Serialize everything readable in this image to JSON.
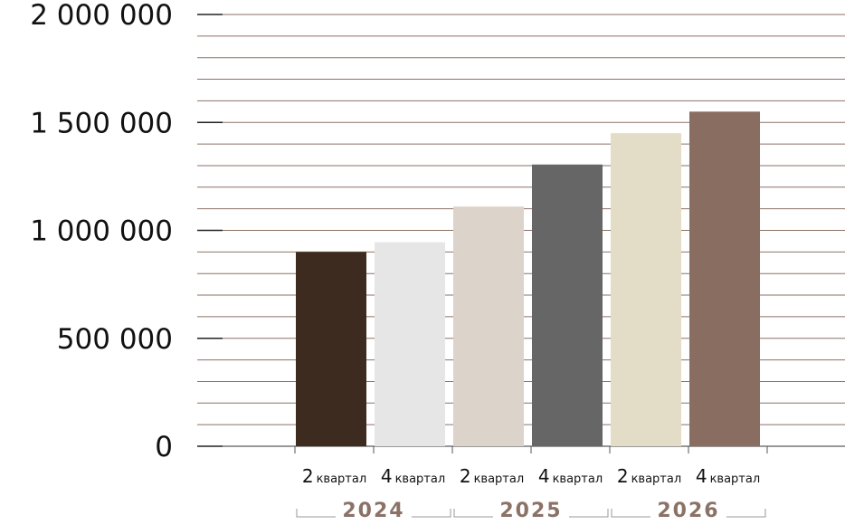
{
  "chart_data": {
    "type": "bar",
    "categories": [
      {
        "num": "2",
        "word": "квартал",
        "year": "2024"
      },
      {
        "num": "4",
        "word": "квартал",
        "year": "2024"
      },
      {
        "num": "2",
        "word": "квартал",
        "year": "2025"
      },
      {
        "num": "4",
        "word": "квартал",
        "year": "2025"
      },
      {
        "num": "2",
        "word": "квартал",
        "year": "2026"
      },
      {
        "num": "4",
        "word": "квартал",
        "year": "2026"
      }
    ],
    "values": [
      900000,
      945000,
      1110000,
      1305000,
      1450000,
      1550000
    ],
    "colors": [
      "#3d2b20",
      "#e6e6e6",
      "#dcd3cb",
      "#666666",
      "#e3dcc6",
      "#8a6d61"
    ],
    "year_groups": [
      "2024",
      "2025",
      "2026"
    ],
    "year_color": "#8b7267",
    "gridline_color": "#8b7267",
    "yticks": [
      {
        "value": 0,
        "label": "0"
      },
      {
        "value": 500000,
        "label": "500 000"
      },
      {
        "value": 1000000,
        "label": "1 000 000"
      },
      {
        "value": 1500000,
        "label": "1 500 000"
      },
      {
        "value": 2000000,
        "label": "2 000 000"
      }
    ],
    "ylim": [
      0,
      2000000
    ],
    "minor_step": 100000,
    "grid": true,
    "title": "",
    "xlabel": "",
    "ylabel": ""
  }
}
